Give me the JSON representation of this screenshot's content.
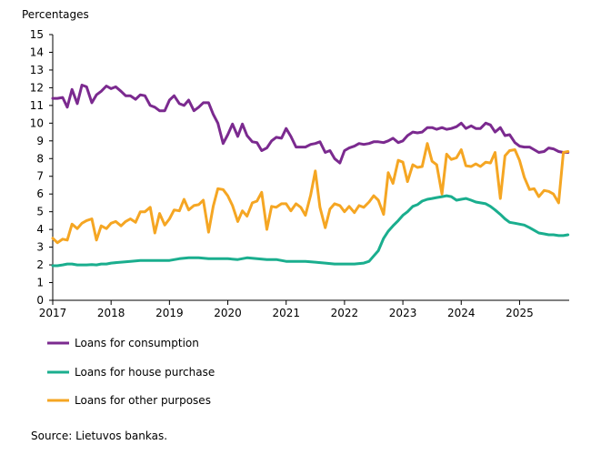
{
  "chart_data": {
    "type": "line",
    "ylabel": "Percentages",
    "ylim": [
      0,
      15
    ],
    "yticks": [
      0,
      1,
      2,
      3,
      4,
      5,
      6,
      7,
      8,
      9,
      10,
      11,
      12,
      13,
      14,
      15
    ],
    "xlim": [
      2017.0,
      2025.85
    ],
    "xticks": [
      2017,
      2018,
      2019,
      2020,
      2021,
      2022,
      2023,
      2024,
      2025
    ],
    "grid": false,
    "legend_position": "bottom",
    "source": "Source: Lietuvos bankas.",
    "series": [
      {
        "name": "Loans for consumption",
        "color": "#7b2a8f",
        "x": [
          2017.0,
          2017.08,
          2017.17,
          2017.25,
          2017.33,
          2017.42,
          2017.5,
          2017.58,
          2017.67,
          2017.75,
          2017.83,
          2017.92,
          2018.0,
          2018.08,
          2018.17,
          2018.25,
          2018.33,
          2018.42,
          2018.5,
          2018.58,
          2018.67,
          2018.75,
          2018.83,
          2018.92,
          2019.0,
          2019.08,
          2019.17,
          2019.25,
          2019.33,
          2019.42,
          2019.5,
          2019.58,
          2019.67,
          2019.75,
          2019.83,
          2019.92,
          2020.0,
          2020.08,
          2020.17,
          2020.25,
          2020.33,
          2020.42,
          2020.5,
          2020.58,
          2020.67,
          2020.75,
          2020.83,
          2020.92,
          2021.0,
          2021.08,
          2021.17,
          2021.25,
          2021.33,
          2021.42,
          2021.5,
          2021.58,
          2021.67,
          2021.75,
          2021.83,
          2021.92,
          2022.0,
          2022.08,
          2022.17,
          2022.25,
          2022.33,
          2022.42,
          2022.5,
          2022.58,
          2022.67,
          2022.75,
          2022.83,
          2022.92,
          2023.0,
          2023.08,
          2023.17,
          2023.25,
          2023.33,
          2023.42,
          2023.5,
          2023.58,
          2023.67,
          2023.75,
          2023.83,
          2023.92,
          2024.0,
          2024.08,
          2024.17,
          2024.25,
          2024.33,
          2024.42,
          2024.5,
          2024.58,
          2024.67,
          2024.75,
          2024.83,
          2024.92,
          2025.0,
          2025.08,
          2025.17,
          2025.25,
          2025.33,
          2025.42,
          2025.5,
          2025.58,
          2025.67,
          2025.75,
          2025.83
        ],
        "values": [
          11.4,
          11.4,
          11.45,
          10.9,
          11.9,
          11.1,
          12.15,
          12.05,
          11.15,
          11.6,
          11.8,
          12.1,
          11.95,
          12.05,
          11.8,
          11.55,
          11.55,
          11.35,
          11.6,
          11.55,
          11.0,
          10.9,
          10.7,
          10.7,
          11.3,
          11.55,
          11.1,
          11.0,
          11.3,
          10.7,
          10.9,
          11.15,
          11.15,
          10.5,
          10.0,
          8.85,
          9.35,
          9.95,
          9.25,
          9.95,
          9.3,
          8.95,
          8.9,
          8.45,
          8.6,
          9.0,
          9.2,
          9.15,
          9.7,
          9.25,
          8.65,
          8.65,
          8.65,
          8.8,
          8.85,
          8.95,
          8.35,
          8.45,
          8.0,
          7.75,
          8.45,
          8.6,
          8.7,
          8.85,
          8.8,
          8.85,
          8.95,
          8.95,
          8.9,
          9.0,
          9.15,
          8.9,
          9.0,
          9.3,
          9.5,
          9.45,
          9.5,
          9.75,
          9.75,
          9.65,
          9.75,
          9.65,
          9.7,
          9.8,
          10.0,
          9.7,
          9.85,
          9.7,
          9.7,
          10.0,
          9.9,
          9.5,
          9.75,
          9.3,
          9.35,
          8.9,
          8.7,
          8.65,
          8.65,
          8.5,
          8.35,
          8.4,
          8.6,
          8.55,
          8.4,
          8.35,
          8.35
        ]
      },
      {
        "name": "Loans for house purchase",
        "color": "#1aae8e",
        "x": [
          2017.0,
          2017.08,
          2017.17,
          2017.25,
          2017.33,
          2017.42,
          2017.5,
          2017.58,
          2017.67,
          2017.75,
          2017.83,
          2017.92,
          2018.0,
          2018.17,
          2018.33,
          2018.5,
          2018.67,
          2018.83,
          2019.0,
          2019.17,
          2019.33,
          2019.5,
          2019.67,
          2019.83,
          2020.0,
          2020.17,
          2020.33,
          2020.5,
          2020.67,
          2020.83,
          2021.0,
          2021.17,
          2021.33,
          2021.5,
          2021.67,
          2021.83,
          2022.0,
          2022.17,
          2022.33,
          2022.42,
          2022.5,
          2022.58,
          2022.67,
          2022.75,
          2022.83,
          2022.92,
          2023.0,
          2023.08,
          2023.17,
          2023.25,
          2023.33,
          2023.42,
          2023.5,
          2023.58,
          2023.67,
          2023.75,
          2023.83,
          2023.92,
          2024.0,
          2024.08,
          2024.17,
          2024.25,
          2024.33,
          2024.42,
          2024.5,
          2024.58,
          2024.67,
          2024.75,
          2024.83,
          2024.92,
          2025.0,
          2025.08,
          2025.17,
          2025.25,
          2025.33,
          2025.42,
          2025.5,
          2025.58,
          2025.67,
          2025.75,
          2025.83
        ],
        "values": [
          1.95,
          1.95,
          2.0,
          2.05,
          2.05,
          2.0,
          2.0,
          2.0,
          2.02,
          2.0,
          2.05,
          2.05,
          2.1,
          2.15,
          2.2,
          2.25,
          2.25,
          2.25,
          2.25,
          2.35,
          2.4,
          2.4,
          2.35,
          2.35,
          2.35,
          2.3,
          2.4,
          2.35,
          2.3,
          2.3,
          2.2,
          2.2,
          2.2,
          2.15,
          2.1,
          2.05,
          2.05,
          2.05,
          2.1,
          2.2,
          2.5,
          2.8,
          3.5,
          3.9,
          4.2,
          4.5,
          4.8,
          5.0,
          5.3,
          5.4,
          5.6,
          5.7,
          5.75,
          5.8,
          5.85,
          5.9,
          5.85,
          5.65,
          5.7,
          5.75,
          5.65,
          5.55,
          5.5,
          5.45,
          5.3,
          5.1,
          4.85,
          4.6,
          4.4,
          4.35,
          4.3,
          4.25,
          4.1,
          3.95,
          3.8,
          3.75,
          3.7,
          3.7,
          3.65,
          3.65,
          3.7
        ]
      },
      {
        "name": "Loans for other purposes",
        "color": "#f5a623",
        "x": [
          2017.0,
          2017.08,
          2017.17,
          2017.25,
          2017.33,
          2017.42,
          2017.5,
          2017.58,
          2017.67,
          2017.75,
          2017.83,
          2017.92,
          2018.0,
          2018.08,
          2018.17,
          2018.25,
          2018.33,
          2018.42,
          2018.5,
          2018.58,
          2018.67,
          2018.75,
          2018.83,
          2018.92,
          2019.0,
          2019.08,
          2019.17,
          2019.25,
          2019.33,
          2019.42,
          2019.5,
          2019.58,
          2019.67,
          2019.75,
          2019.83,
          2019.92,
          2020.0,
          2020.08,
          2020.17,
          2020.25,
          2020.33,
          2020.42,
          2020.5,
          2020.58,
          2020.67,
          2020.75,
          2020.83,
          2020.92,
          2021.0,
          2021.08,
          2021.17,
          2021.25,
          2021.33,
          2021.42,
          2021.5,
          2021.58,
          2021.67,
          2021.75,
          2021.83,
          2021.92,
          2022.0,
          2022.08,
          2022.17,
          2022.25,
          2022.33,
          2022.42,
          2022.5,
          2022.58,
          2022.67,
          2022.75,
          2022.83,
          2022.92,
          2023.0,
          2023.08,
          2023.17,
          2023.25,
          2023.33,
          2023.42,
          2023.5,
          2023.58,
          2023.67,
          2023.75,
          2023.83,
          2023.92,
          2024.0,
          2024.08,
          2024.17,
          2024.25,
          2024.33,
          2024.42,
          2024.5,
          2024.58,
          2024.67,
          2024.75,
          2024.83,
          2024.92,
          2025.0,
          2025.08,
          2025.17,
          2025.25,
          2025.33,
          2025.42,
          2025.5,
          2025.58,
          2025.67,
          2025.75,
          2025.83
        ],
        "values": [
          3.5,
          3.25,
          3.45,
          3.4,
          4.3,
          4.05,
          4.35,
          4.5,
          4.6,
          3.4,
          4.2,
          4.05,
          4.35,
          4.45,
          4.2,
          4.45,
          4.6,
          4.4,
          5.0,
          5.0,
          5.25,
          3.8,
          4.9,
          4.25,
          4.6,
          5.1,
          5.05,
          5.7,
          5.1,
          5.35,
          5.4,
          5.65,
          3.85,
          5.3,
          6.3,
          6.25,
          5.9,
          5.35,
          4.45,
          5.05,
          4.75,
          5.5,
          5.6,
          6.1,
          4.0,
          5.3,
          5.25,
          5.45,
          5.45,
          5.05,
          5.45,
          5.25,
          4.8,
          5.95,
          7.3,
          5.25,
          4.1,
          5.15,
          5.45,
          5.35,
          5.0,
          5.3,
          4.95,
          5.35,
          5.25,
          5.55,
          5.9,
          5.65,
          4.85,
          7.2,
          6.6,
          7.9,
          7.8,
          6.7,
          7.65,
          7.5,
          7.55,
          8.85,
          7.85,
          7.65,
          6.0,
          8.25,
          7.95,
          8.05,
          8.5,
          7.6,
          7.55,
          7.7,
          7.55,
          7.8,
          7.75,
          8.35,
          5.75,
          8.15,
          8.45,
          8.5,
          7.9,
          6.95,
          6.25,
          6.3,
          5.85,
          6.2,
          6.15,
          6.0,
          5.5,
          8.35,
          8.4
        ]
      }
    ]
  }
}
